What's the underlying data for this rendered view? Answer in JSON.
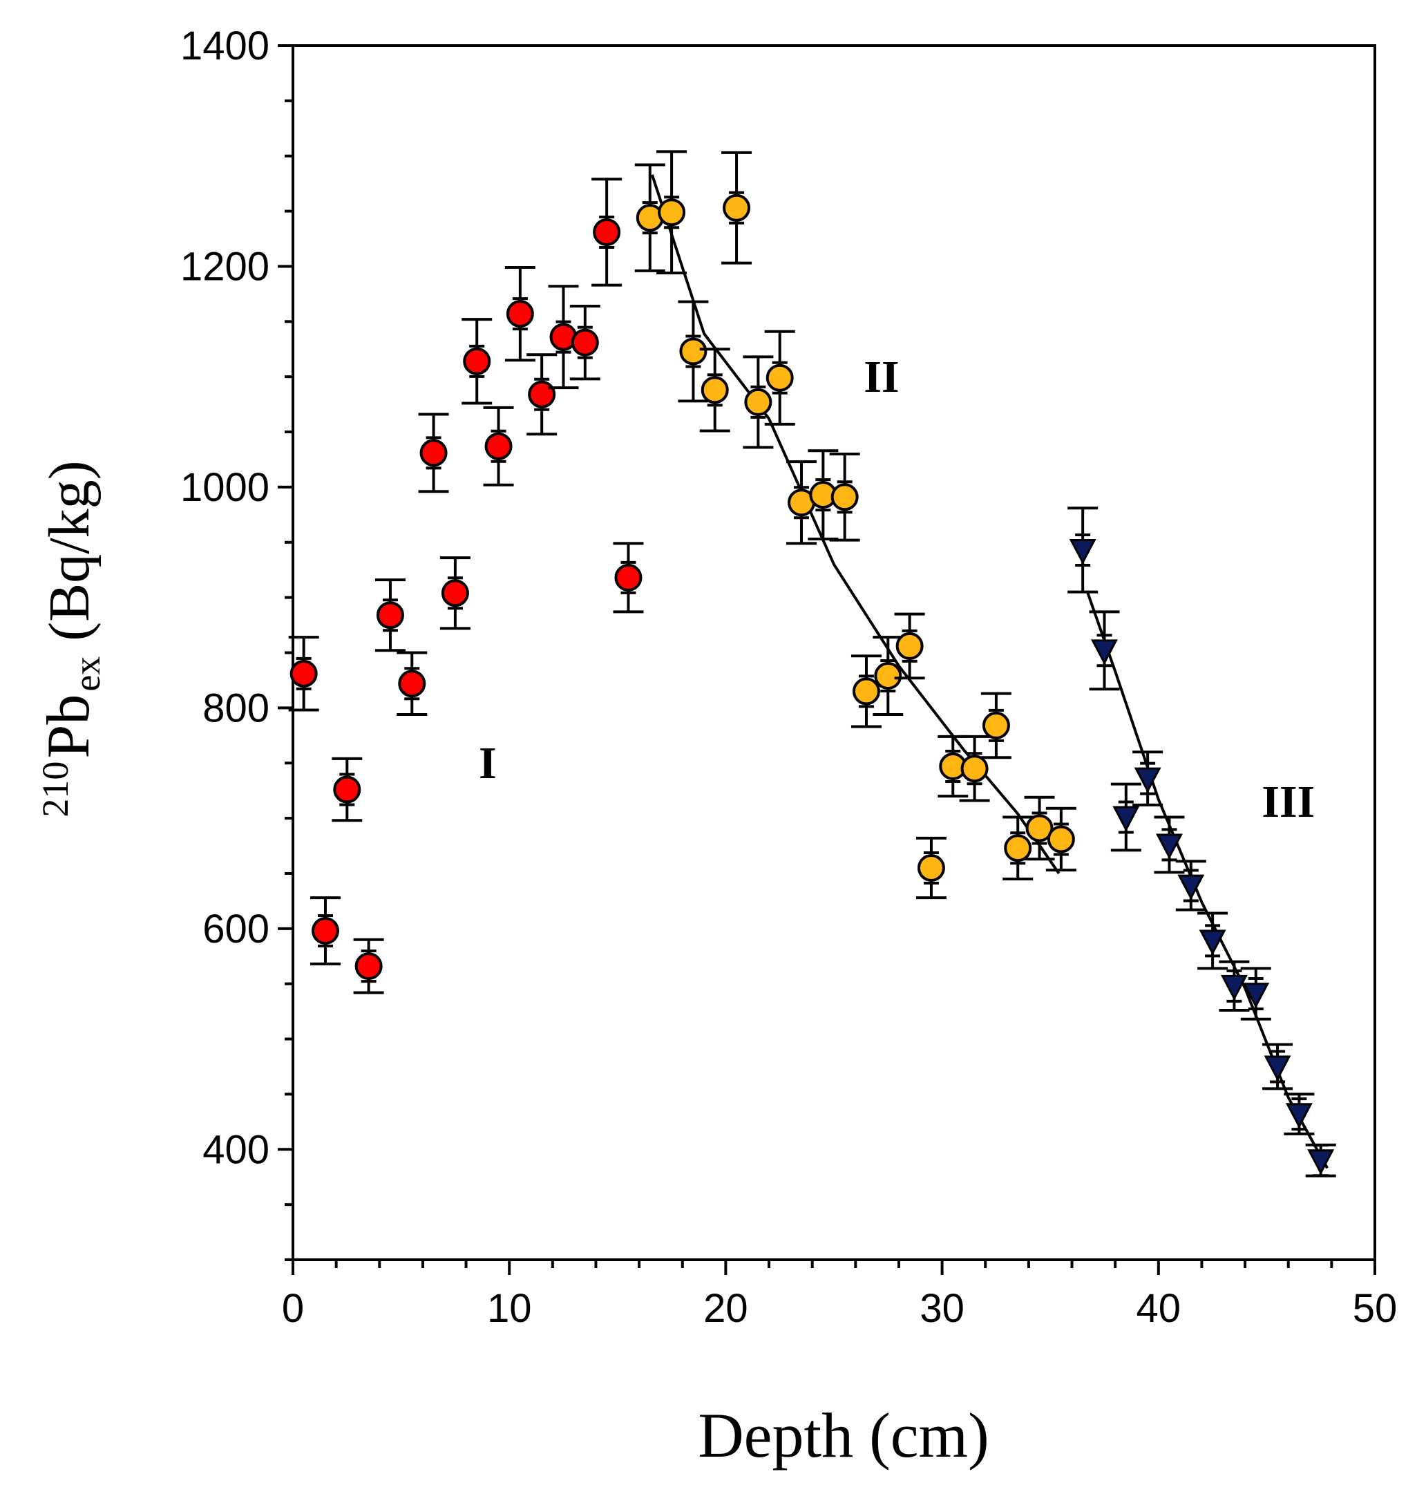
{
  "chart_data": {
    "type": "scatter",
    "title": "",
    "xlabel": "Depth (cm)",
    "ylabel": {
      "isotope_mass": "210",
      "element": "Pb",
      "subscript": "ex",
      "unit": "(Bq/kg)"
    },
    "xlim": [
      0,
      50
    ],
    "ylim": [
      300,
      1400
    ],
    "x_ticks": [
      0,
      10,
      20,
      30,
      40,
      50
    ],
    "y_ticks": [
      400,
      600,
      800,
      1000,
      1200,
      1400
    ],
    "zone_labels": [
      {
        "text": "I",
        "x": 9,
        "y": 750
      },
      {
        "text": "II",
        "x": 27.2,
        "y": 1100
      },
      {
        "text": "III",
        "x": 46,
        "y": 715
      }
    ],
    "series": [
      {
        "name": "I",
        "marker": "circle",
        "color": "#ff0000",
        "points": [
          {
            "x": 0.5,
            "y": 831,
            "err": 33
          },
          {
            "x": 1.5,
            "y": 598,
            "err": 30
          },
          {
            "x": 2.5,
            "y": 726,
            "err": 28
          },
          {
            "x": 3.5,
            "y": 566,
            "err": 24
          },
          {
            "x": 4.5,
            "y": 884,
            "err": 32
          },
          {
            "x": 5.5,
            "y": 822,
            "err": 28
          },
          {
            "x": 6.5,
            "y": 1031,
            "err": 35
          },
          {
            "x": 7.5,
            "y": 904,
            "err": 32
          },
          {
            "x": 8.5,
            "y": 1114,
            "err": 38
          },
          {
            "x": 9.5,
            "y": 1037,
            "err": 35
          },
          {
            "x": 10.5,
            "y": 1157,
            "err": 42
          },
          {
            "x": 11.5,
            "y": 1084,
            "err": 36
          },
          {
            "x": 12.5,
            "y": 1136,
            "err": 46
          },
          {
            "x": 13.5,
            "y": 1131,
            "err": 33
          },
          {
            "x": 14.5,
            "y": 1231,
            "err": 48
          },
          {
            "x": 15.5,
            "y": 918,
            "err": 31
          }
        ]
      },
      {
        "name": "II",
        "marker": "circle",
        "color": "#ffb612",
        "points": [
          {
            "x": 16.5,
            "y": 1244,
            "err": 48
          },
          {
            "x": 17.5,
            "y": 1249,
            "err": 55
          },
          {
            "x": 18.5,
            "y": 1123,
            "err": 45
          },
          {
            "x": 19.5,
            "y": 1088,
            "err": 37
          },
          {
            "x": 20.5,
            "y": 1253,
            "err": 50
          },
          {
            "x": 21.5,
            "y": 1077,
            "err": 41
          },
          {
            "x": 22.5,
            "y": 1099,
            "err": 42
          },
          {
            "x": 23.5,
            "y": 986,
            "err": 37
          },
          {
            "x": 24.5,
            "y": 993,
            "err": 40
          },
          {
            "x": 25.5,
            "y": 991,
            "err": 39
          },
          {
            "x": 26.5,
            "y": 815,
            "err": 32
          },
          {
            "x": 27.5,
            "y": 829,
            "err": 35
          },
          {
            "x": 28.5,
            "y": 856,
            "err": 29
          },
          {
            "x": 29.5,
            "y": 655,
            "err": 27
          },
          {
            "x": 30.5,
            "y": 747,
            "err": 27
          },
          {
            "x": 31.5,
            "y": 745,
            "err": 29
          },
          {
            "x": 32.5,
            "y": 784,
            "err": 29
          },
          {
            "x": 33.5,
            "y": 673,
            "err": 28
          },
          {
            "x": 34.5,
            "y": 691,
            "err": 28
          },
          {
            "x": 35.5,
            "y": 681,
            "err": 28
          }
        ]
      },
      {
        "name": "III",
        "marker": "triangle-down",
        "color": "#0a1a5c",
        "points": [
          {
            "x": 36.5,
            "y": 943,
            "err": 38
          },
          {
            "x": 37.5,
            "y": 852,
            "err": 35
          },
          {
            "x": 38.5,
            "y": 701,
            "err": 30
          },
          {
            "x": 39.5,
            "y": 736,
            "err": 24
          },
          {
            "x": 40.5,
            "y": 676,
            "err": 25
          },
          {
            "x": 41.5,
            "y": 639,
            "err": 22
          },
          {
            "x": 42.5,
            "y": 589,
            "err": 25
          },
          {
            "x": 43.5,
            "y": 548,
            "err": 22
          },
          {
            "x": 44.5,
            "y": 541,
            "err": 23
          },
          {
            "x": 45.5,
            "y": 475,
            "err": 20
          },
          {
            "x": 46.5,
            "y": 432,
            "err": 18
          },
          {
            "x": 47.5,
            "y": 390,
            "err": 14
          }
        ]
      }
    ],
    "fit_lines": [
      {
        "name": "fit-II",
        "x": [
          16.6,
          19.0,
          22.0,
          25.0,
          28.0,
          31.0,
          33.5,
          35.4
        ],
        "y": [
          1283,
          1139,
          1062,
          930,
          838,
          762,
          704,
          650
        ]
      },
      {
        "name": "fit-III",
        "x": [
          36.7,
          38.0,
          40.0,
          42.0,
          44.0,
          46.0,
          47.8
        ],
        "y": [
          906,
          833,
          717,
          624,
          546,
          447,
          383
        ]
      }
    ]
  }
}
